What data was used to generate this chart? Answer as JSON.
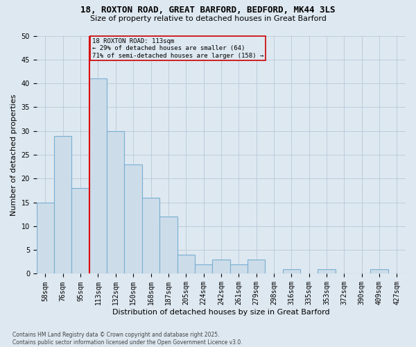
{
  "title1": "18, ROXTON ROAD, GREAT BARFORD, BEDFORD, MK44 3LS",
  "title2": "Size of property relative to detached houses in Great Barford",
  "xlabel": "Distribution of detached houses by size in Great Barford",
  "ylabel": "Number of detached properties",
  "categories": [
    "58sqm",
    "76sqm",
    "95sqm",
    "113sqm",
    "132sqm",
    "150sqm",
    "168sqm",
    "187sqm",
    "205sqm",
    "224sqm",
    "242sqm",
    "261sqm",
    "279sqm",
    "298sqm",
    "316sqm",
    "335sqm",
    "353sqm",
    "372sqm",
    "390sqm",
    "409sqm",
    "427sqm"
  ],
  "values": [
    15,
    29,
    18,
    41,
    30,
    23,
    16,
    12,
    4,
    2,
    3,
    2,
    3,
    0,
    1,
    0,
    1,
    0,
    0,
    1,
    0
  ],
  "bar_color": "#ccdce8",
  "bar_edge_color": "#7aafd4",
  "grid_color": "#b8c8d8",
  "bg_color": "#dde8f0",
  "vline_color": "#dd0000",
  "vline_index": 3,
  "annotation_text": "18 ROXTON ROAD: 113sqm\n← 29% of detached houses are smaller (64)\n71% of semi-detached houses are larger (158) →",
  "annotation_box_edge": "#cc0000",
  "footnote": "Contains HM Land Registry data © Crown copyright and database right 2025.\nContains public sector information licensed under the Open Government Licence v3.0.",
  "ylim": [
    0,
    50
  ],
  "yticks": [
    0,
    5,
    10,
    15,
    20,
    25,
    30,
    35,
    40,
    45,
    50
  ],
  "title1_fontsize": 9,
  "title2_fontsize": 8,
  "tick_fontsize": 7,
  "ylabel_fontsize": 8,
  "xlabel_fontsize": 8
}
